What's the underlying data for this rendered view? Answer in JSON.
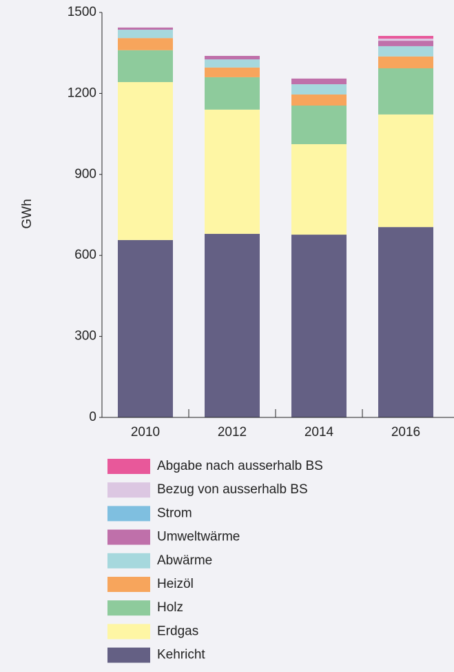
{
  "chart_data": {
    "type": "stacked_bar",
    "y_label": "GWh",
    "categories": [
      "2010",
      "2012",
      "2014",
      "2016"
    ],
    "ylim": [
      0,
      1500
    ],
    "yticks": [
      0,
      300,
      600,
      900,
      1200,
      1500
    ],
    "grid": false,
    "series": [
      {
        "name": "Kehricht",
        "color": "#646084",
        "values": [
          657,
          680,
          677,
          705
        ]
      },
      {
        "name": "Erdgas",
        "color": "#fef6a4",
        "values": [
          585,
          460,
          335,
          417
        ]
      },
      {
        "name": "Holz",
        "color": "#8ecb9c",
        "values": [
          118,
          120,
          143,
          171
        ]
      },
      {
        "name": "Heizöl",
        "color": "#f7a55c",
        "values": [
          45,
          36,
          41,
          44
        ]
      },
      {
        "name": "Abwärme",
        "color": "#a6d8dd",
        "values": [
          31,
          30,
          38,
          38
        ]
      },
      {
        "name": "Umweltwärme",
        "color": "#bf70aa",
        "values": [
          8,
          13,
          21,
          20
        ]
      },
      {
        "name": "Strom",
        "color": "#7fbfe0",
        "values": [
          0,
          0,
          0,
          0
        ]
      },
      {
        "name": "Bezug von ausserhalb BS",
        "color": "#dcc7e2",
        "values": [
          0,
          0,
          0,
          8
        ]
      },
      {
        "name": "Abgabe nach ausserhalb BS",
        "color": "#e8589a",
        "values": [
          0,
          0,
          0,
          10
        ]
      }
    ]
  }
}
